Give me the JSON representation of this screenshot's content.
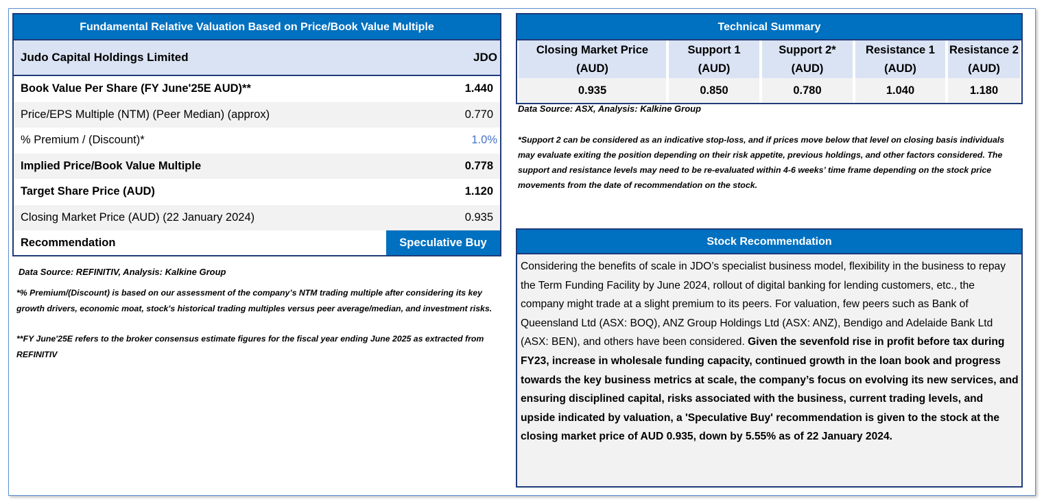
{
  "valuation": {
    "title": "Fundamental Relative Valuation Based on Price/Book Value Multiple",
    "company": "Judo Capital Holdings Limited",
    "ticker": "JDO",
    "rows": [
      {
        "label": "Book Value Per Share (FY June'25E AUD)**",
        "value": "1.440"
      },
      {
        "label": "Price/EPS Multiple (NTM) (Peer Median) (approx)",
        "value": "0.770"
      },
      {
        "label": "% Premium / (Discount)*",
        "value": "1.0%"
      },
      {
        "label": "Implied Price/Book Value Multiple",
        "value": "0.778"
      },
      {
        "label": "Target Share Price (AUD)",
        "value": "1.120"
      },
      {
        "label": "Closing Market Price (AUD) (22 January 2024)",
        "value": "0.935"
      }
    ],
    "recommendation_label": "Recommendation",
    "recommendation_value": "Speculative Buy",
    "source": "Data Source: REFINITIV, Analysis: Kalkine Group",
    "footnote1": "*% Premium/(Discount) is based on our assessment of the company’s NTM trading multiple after considering its key growth drivers, economic moat, stock's historical trading multiples versus peer average/median, and investment risks.",
    "footnote2": "**FY June'25E refers to the broker consensus estimate figures for the fiscal year ending June 2025 as extracted from REFINITIV"
  },
  "technical": {
    "title": "Technical Summary",
    "headers": [
      [
        "Closing Market Price",
        "(AUD)"
      ],
      [
        "Support 1",
        "(AUD)"
      ],
      [
        "Support 2*",
        "(AUD)"
      ],
      [
        "Resistance 1",
        "(AUD)"
      ],
      [
        "Resistance 2",
        "(AUD)"
      ]
    ],
    "values": [
      "0.935",
      "0.850",
      "0.780",
      "1.040",
      "1.180"
    ],
    "source": "Data Source: ASX, Analysis: Kalkine Group",
    "note": "*Support 2 can be considered as an indicative stop-loss, and if prices move below that level on closing basis individuals may evaluate exiting the position depending on their risk appetite, previous holdings, and other factors considered. The support and resistance levels may need to be re-evaluated within 4-6 weeks’ time frame depending on the stock price movements from the date of recommendation on the stock."
  },
  "stock_recommendation": {
    "title": "Stock Recommendation",
    "text_regular": "Considering the benefits of scale in JDO’s specialist business model, flexibility in the business to repay the Term Funding Facility by June 2024, rollout of digital banking for lending customers, etc., the company might trade at a slight premium to its peers. For valuation, few peers such as Bank of Queensland Ltd (ASX: BOQ), ANZ Group Holdings Ltd (ASX: ANZ), Bendigo and Adelaide Bank Ltd (ASX: BEN), and others have been considered. ",
    "text_bold": "Given the sevenfold rise in profit before tax during FY23, increase in wholesale funding capacity, continued growth in the loan book and progress towards the key business metrics at scale, the company’s focus on evolving its new services, and ensuring disciplined capital, risks associated with the business, current trading levels, and upside indicated by valuation, a 'Speculative Buy' recommendation is given to the stock at the closing market price of AUD 0.935, down by 5.55% as of 22 January 2024."
  },
  "colors": {
    "header_blue": "#0070c0",
    "light_blue": "#dae3f3",
    "grey": "#f2f2f2",
    "premium_text": "#4472c4"
  }
}
